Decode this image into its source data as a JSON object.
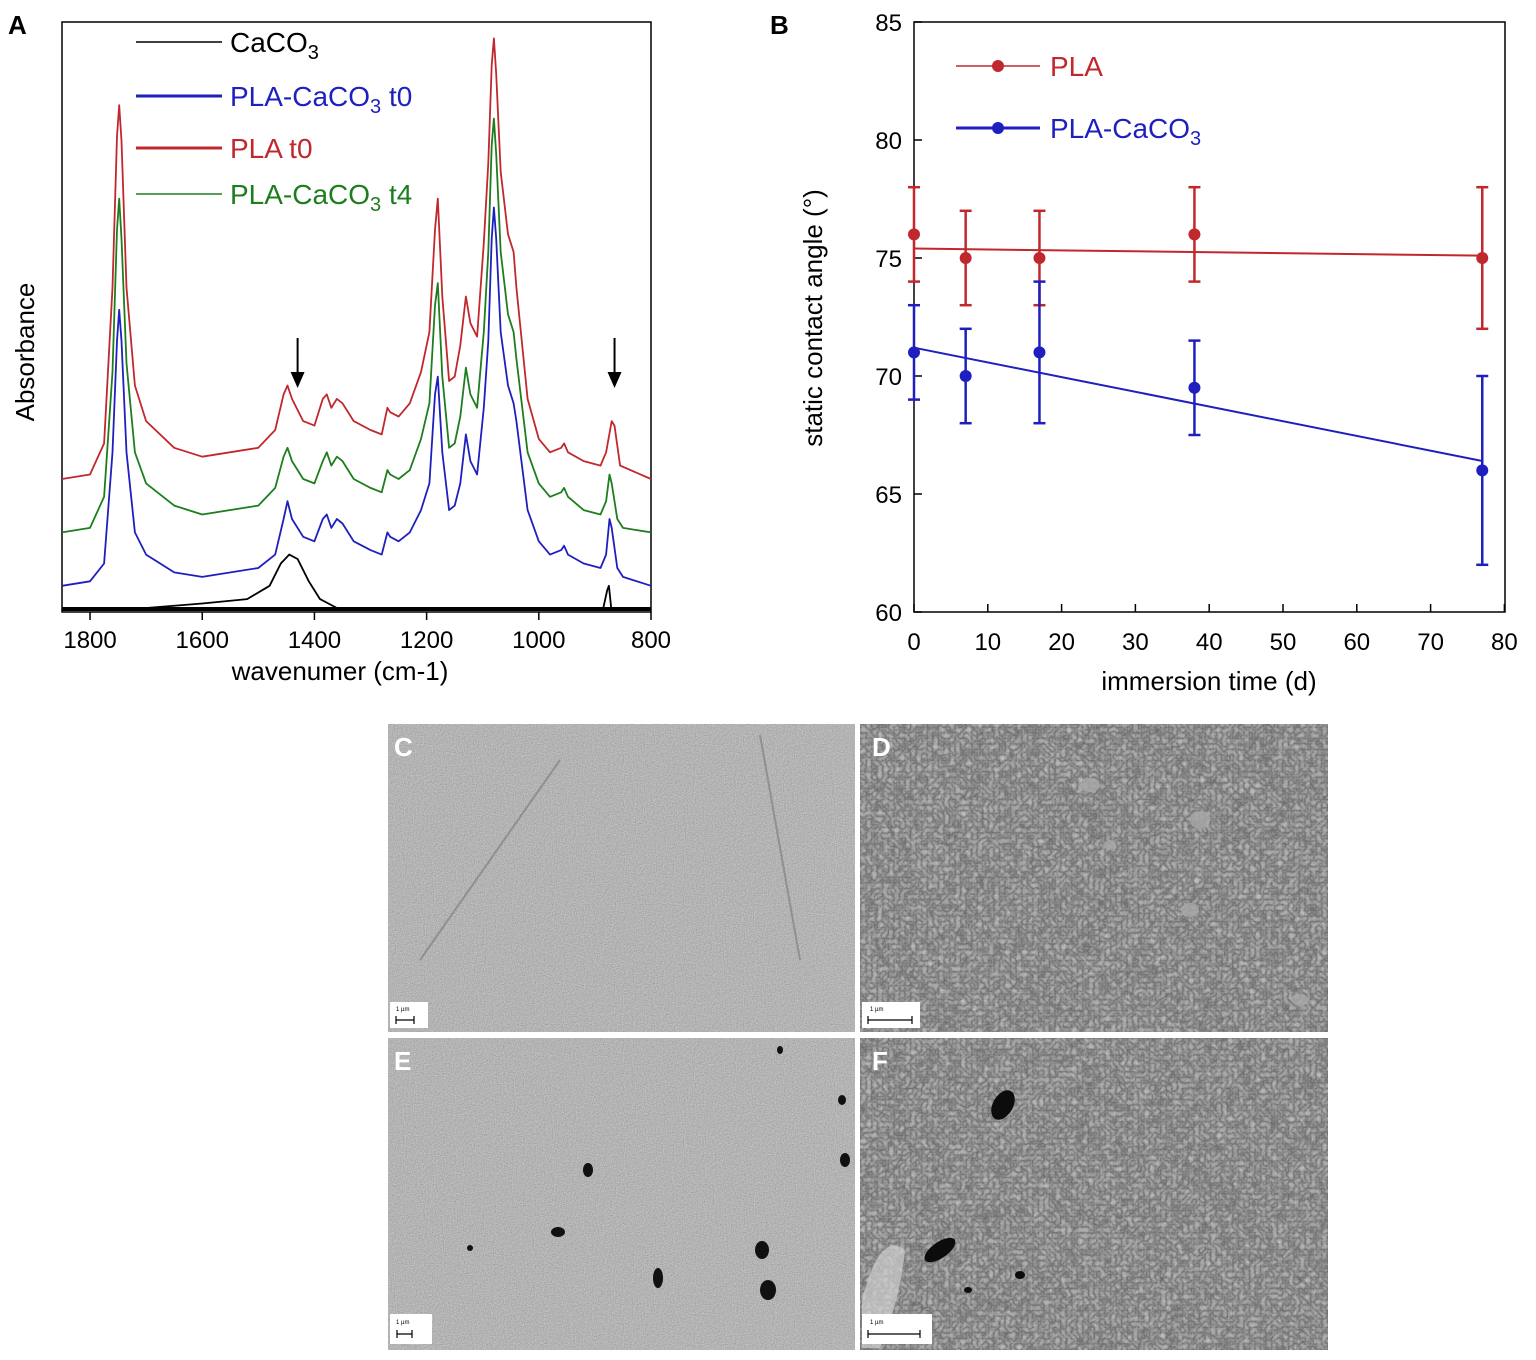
{
  "chart_data": [
    {
      "panel": "A",
      "type": "line",
      "xlabel": "wavenumer (cm-1)",
      "ylabel": "Absorbance",
      "xlim": [
        1850,
        800
      ],
      "x_reversed": true,
      "xticks": [
        1800,
        1600,
        1400,
        1200,
        1000,
        800
      ],
      "y_ticks_shown": false,
      "annotations": [
        {
          "type": "arrow-down",
          "x": 1430
        },
        {
          "type": "arrow-down",
          "x": 865
        }
      ],
      "legend": [
        {
          "base": "CaCO",
          "sub": "3",
          "tail": "",
          "color": "#000000"
        },
        {
          "base": "PLA-CaCO",
          "sub": "3",
          "tail": " t0",
          "color": "#1f1fbf"
        },
        {
          "base": "PLA t0",
          "sub": "",
          "tail": "",
          "color": "#c0282d"
        },
        {
          "base": "PLA-CaCO",
          "sub": "3",
          "tail": " t4",
          "color": "#1e7d1e"
        }
      ],
      "series": [
        {
          "name": "CaCO3",
          "color": "#000000",
          "baseline": 0.0,
          "points": [
            [
              1850,
              0.0
            ],
            [
              1700,
              0.0
            ],
            [
              1600,
              0.01
            ],
            [
              1520,
              0.02
            ],
            [
              1480,
              0.05
            ],
            [
              1460,
              0.1
            ],
            [
              1445,
              0.12
            ],
            [
              1430,
              0.11
            ],
            [
              1410,
              0.06
            ],
            [
              1390,
              0.02
            ],
            [
              1360,
              0.0
            ],
            [
              1000,
              0.0
            ],
            [
              885,
              0.0
            ],
            [
              878,
              0.04
            ],
            [
              875,
              0.05
            ],
            [
              871,
              0.0
            ],
            [
              800,
              0.0
            ]
          ]
        },
        {
          "name": "PLA-CaCO3 t0",
          "color": "#1f1fbf",
          "baseline": 0.05,
          "points": [
            [
              1850,
              0.05
            ],
            [
              1800,
              0.06
            ],
            [
              1775,
              0.1
            ],
            [
              1760,
              0.35
            ],
            [
              1752,
              0.6
            ],
            [
              1748,
              0.67
            ],
            [
              1744,
              0.6
            ],
            [
              1735,
              0.35
            ],
            [
              1720,
              0.17
            ],
            [
              1700,
              0.12
            ],
            [
              1650,
              0.08
            ],
            [
              1600,
              0.07
            ],
            [
              1500,
              0.09
            ],
            [
              1470,
              0.12
            ],
            [
              1455,
              0.2
            ],
            [
              1448,
              0.24
            ],
            [
              1440,
              0.2
            ],
            [
              1420,
              0.16
            ],
            [
              1400,
              0.15
            ],
            [
              1385,
              0.2
            ],
            [
              1378,
              0.21
            ],
            [
              1370,
              0.18
            ],
            [
              1360,
              0.2
            ],
            [
              1350,
              0.19
            ],
            [
              1330,
              0.15
            ],
            [
              1300,
              0.13
            ],
            [
              1280,
              0.12
            ],
            [
              1270,
              0.17
            ],
            [
              1265,
              0.16
            ],
            [
              1250,
              0.15
            ],
            [
              1230,
              0.17
            ],
            [
              1210,
              0.22
            ],
            [
              1195,
              0.28
            ],
            [
              1185,
              0.48
            ],
            [
              1180,
              0.52
            ],
            [
              1172,
              0.35
            ],
            [
              1160,
              0.22
            ],
            [
              1150,
              0.23
            ],
            [
              1140,
              0.28
            ],
            [
              1130,
              0.39
            ],
            [
              1122,
              0.33
            ],
            [
              1110,
              0.3
            ],
            [
              1098,
              0.45
            ],
            [
              1090,
              0.6
            ],
            [
              1084,
              0.83
            ],
            [
              1080,
              0.9
            ],
            [
              1076,
              0.83
            ],
            [
              1068,
              0.62
            ],
            [
              1055,
              0.5
            ],
            [
              1045,
              0.46
            ],
            [
              1040,
              0.42
            ],
            [
              1020,
              0.22
            ],
            [
              1000,
              0.15
            ],
            [
              980,
              0.12
            ],
            [
              960,
              0.13
            ],
            [
              955,
              0.14
            ],
            [
              948,
              0.12
            ],
            [
              920,
              0.1
            ],
            [
              890,
              0.09
            ],
            [
              880,
              0.12
            ],
            [
              874,
              0.2
            ],
            [
              870,
              0.18
            ],
            [
              860,
              0.09
            ],
            [
              850,
              0.07
            ],
            [
              800,
              0.05
            ]
          ]
        },
        {
          "name": "PLA-CaCO3 t4",
          "color": "#1e7d1e",
          "baseline": 0.17,
          "points": [
            [
              1850,
              0.17
            ],
            [
              1800,
              0.18
            ],
            [
              1775,
              0.25
            ],
            [
              1760,
              0.53
            ],
            [
              1752,
              0.85
            ],
            [
              1748,
              0.92
            ],
            [
              1744,
              0.83
            ],
            [
              1735,
              0.55
            ],
            [
              1720,
              0.35
            ],
            [
              1700,
              0.28
            ],
            [
              1650,
              0.23
            ],
            [
              1600,
              0.21
            ],
            [
              1500,
              0.23
            ],
            [
              1470,
              0.27
            ],
            [
              1455,
              0.34
            ],
            [
              1448,
              0.36
            ],
            [
              1440,
              0.33
            ],
            [
              1420,
              0.29
            ],
            [
              1400,
              0.28
            ],
            [
              1385,
              0.33
            ],
            [
              1378,
              0.35
            ],
            [
              1370,
              0.32
            ],
            [
              1360,
              0.34
            ],
            [
              1350,
              0.33
            ],
            [
              1330,
              0.29
            ],
            [
              1300,
              0.27
            ],
            [
              1280,
              0.26
            ],
            [
              1270,
              0.31
            ],
            [
              1265,
              0.3
            ],
            [
              1250,
              0.29
            ],
            [
              1230,
              0.31
            ],
            [
              1210,
              0.38
            ],
            [
              1195,
              0.46
            ],
            [
              1185,
              0.68
            ],
            [
              1180,
              0.73
            ],
            [
              1172,
              0.52
            ],
            [
              1160,
              0.36
            ],
            [
              1150,
              0.37
            ],
            [
              1140,
              0.43
            ],
            [
              1130,
              0.54
            ],
            [
              1122,
              0.48
            ],
            [
              1110,
              0.45
            ],
            [
              1098,
              0.62
            ],
            [
              1090,
              0.8
            ],
            [
              1084,
              1.04
            ],
            [
              1080,
              1.1
            ],
            [
              1076,
              1.02
            ],
            [
              1068,
              0.8
            ],
            [
              1055,
              0.66
            ],
            [
              1045,
              0.62
            ],
            [
              1040,
              0.56
            ],
            [
              1020,
              0.35
            ],
            [
              1000,
              0.28
            ],
            [
              980,
              0.25
            ],
            [
              960,
              0.26
            ],
            [
              955,
              0.27
            ],
            [
              948,
              0.25
            ],
            [
              920,
              0.22
            ],
            [
              890,
              0.21
            ],
            [
              880,
              0.24
            ],
            [
              874,
              0.3
            ],
            [
              870,
              0.28
            ],
            [
              860,
              0.2
            ],
            [
              850,
              0.18
            ],
            [
              800,
              0.17
            ]
          ]
        },
        {
          "name": "PLA t0",
          "color": "#c0282d",
          "baseline": 0.29,
          "points": [
            [
              1850,
              0.29
            ],
            [
              1800,
              0.3
            ],
            [
              1775,
              0.37
            ],
            [
              1760,
              0.72
            ],
            [
              1752,
              1.06
            ],
            [
              1748,
              1.13
            ],
            [
              1744,
              1.05
            ],
            [
              1735,
              0.72
            ],
            [
              1720,
              0.5
            ],
            [
              1700,
              0.42
            ],
            [
              1650,
              0.36
            ],
            [
              1600,
              0.34
            ],
            [
              1500,
              0.36
            ],
            [
              1470,
              0.4
            ],
            [
              1455,
              0.48
            ],
            [
              1448,
              0.5
            ],
            [
              1440,
              0.47
            ],
            [
              1420,
              0.42
            ],
            [
              1400,
              0.41
            ],
            [
              1385,
              0.47
            ],
            [
              1378,
              0.48
            ],
            [
              1370,
              0.45
            ],
            [
              1360,
              0.47
            ],
            [
              1350,
              0.46
            ],
            [
              1330,
              0.42
            ],
            [
              1300,
              0.4
            ],
            [
              1280,
              0.39
            ],
            [
              1270,
              0.45
            ],
            [
              1265,
              0.44
            ],
            [
              1250,
              0.43
            ],
            [
              1230,
              0.46
            ],
            [
              1210,
              0.53
            ],
            [
              1195,
              0.62
            ],
            [
              1185,
              0.85
            ],
            [
              1180,
              0.92
            ],
            [
              1172,
              0.7
            ],
            [
              1160,
              0.51
            ],
            [
              1150,
              0.52
            ],
            [
              1140,
              0.59
            ],
            [
              1130,
              0.7
            ],
            [
              1122,
              0.64
            ],
            [
              1110,
              0.61
            ],
            [
              1098,
              0.82
            ],
            [
              1090,
              1.0
            ],
            [
              1084,
              1.22
            ],
            [
              1080,
              1.28
            ],
            [
              1076,
              1.2
            ],
            [
              1068,
              0.98
            ],
            [
              1055,
              0.84
            ],
            [
              1045,
              0.8
            ],
            [
              1040,
              0.72
            ],
            [
              1020,
              0.47
            ],
            [
              1000,
              0.38
            ],
            [
              980,
              0.35
            ],
            [
              960,
              0.36
            ],
            [
              955,
              0.37
            ],
            [
              948,
              0.35
            ],
            [
              920,
              0.33
            ],
            [
              890,
              0.32
            ],
            [
              880,
              0.35
            ],
            [
              870,
              0.42
            ],
            [
              865,
              0.41
            ],
            [
              855,
              0.32
            ],
            [
              800,
              0.29
            ]
          ]
        }
      ]
    },
    {
      "panel": "B",
      "type": "scatter",
      "xlabel": "immersion time (d)",
      "ylabel": "static contact angle (°)",
      "xlim": [
        0,
        80
      ],
      "ylim": [
        60,
        85
      ],
      "xticks": [
        0,
        10,
        20,
        30,
        40,
        50,
        60,
        70,
        80
      ],
      "yticks": [
        60,
        65,
        70,
        75,
        80,
        85
      ],
      "legend": [
        {
          "base": "PLA",
          "sub": "",
          "tail": "",
          "color": "#c0282d"
        },
        {
          "base": "PLA-CaCO",
          "sub": "3",
          "tail": "",
          "color": "#1f1fbf"
        }
      ],
      "series": [
        {
          "name": "PLA",
          "color": "#c0282d",
          "x": [
            0,
            7,
            17,
            38,
            77
          ],
          "y": [
            76,
            75,
            75,
            76,
            75
          ],
          "yerr": [
            2,
            2,
            2,
            2,
            3
          ],
          "fit": [
            [
              0,
              75.4
            ],
            [
              77,
              75.1
            ]
          ]
        },
        {
          "name": "PLA-CaCO3",
          "color": "#1f1fbf",
          "x": [
            0,
            7,
            17,
            38,
            77
          ],
          "y": [
            71,
            70,
            71,
            69.5,
            66
          ],
          "yerr": [
            2,
            2,
            3,
            2,
            4
          ],
          "fit": [
            [
              0,
              71.2
            ],
            [
              77,
              66.4
            ]
          ]
        }
      ]
    }
  ],
  "sem_images": [
    {
      "label": "C",
      "scale_text": "1 µm"
    },
    {
      "label": "D",
      "scale_text": "1 µm"
    },
    {
      "label": "E",
      "scale_text": "1 µm"
    },
    {
      "label": "F",
      "scale_text": "1 µm"
    }
  ]
}
